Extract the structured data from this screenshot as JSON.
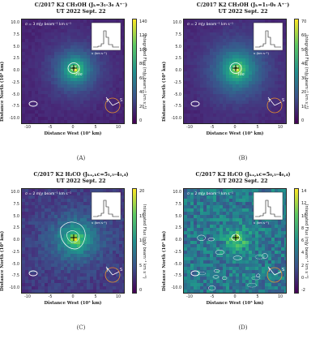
{
  "panels": [
    {
      "title": "C/2017 K2 CH₃OH (Jₖ=3₁-3₀ A⁺⁻)",
      "date": "UT 2022 Sept. 22",
      "note": "σ = 3 mJy beam⁻¹ km s⁻¹",
      "letter": "(A)",
      "cbar_ticks": [
        "140",
        "120",
        "100",
        "80",
        "60",
        "40",
        "20",
        "0"
      ],
      "map_style": "blob",
      "inset_x": "-2.5 0.0 2.5",
      "inset_xlabel": "v (km s⁻¹)",
      "contour_label": "20σ"
    },
    {
      "title": "C/2017 K2 CH₃OH (Jₖ=1₁-0₀ A⁺⁻)",
      "date": "UT 2022 Sept. 22",
      "note": "σ = 2 mJy beam⁻¹ km s⁻¹",
      "letter": "(B)",
      "cbar_ticks": [
        "70",
        "60",
        "50",
        "40",
        "30",
        "20",
        "10",
        "0"
      ],
      "map_style": "blob",
      "inset_x": "-2.5 0.0 2.5",
      "inset_xlabel": "v (km s⁻¹)",
      "contour_label": "10σ"
    },
    {
      "title": "C/2017 K2 H₂CO (Jₖₐ,ₖc=5₁,₅-4₁,₄)",
      "date": "UT 2022 Sept. 22",
      "note": "σ = 2 mJy beam⁻¹ km s⁻¹",
      "letter": "(C)",
      "cbar_ticks": [
        "20",
        "15",
        "10",
        "5",
        "0"
      ],
      "map_style": "patchy",
      "inset_x": "-2.5 0.0 2.5",
      "inset_xlabel": "v (km s⁻¹)",
      "contour_label": ""
    },
    {
      "title": "C/2017 K2 H₂CO (Jₖₐ,ₖc=5₀,₅-4₀,₄)",
      "date": "UT 2022 Sept. 22",
      "note": "σ = 2 mJy beam⁻¹ km s⁻¹",
      "letter": "(D)",
      "cbar_ticks": [
        "14",
        "12",
        "10",
        "8",
        "6",
        "4",
        "2",
        "0",
        "-2"
      ],
      "map_style": "noisy",
      "inset_x": "-2.5 0.0 2.5",
      "inset_xlabel": "v (km s⁻¹)",
      "contour_label": ""
    }
  ],
  "axes": {
    "ylabel": "Distance North (10³ km)",
    "xlabel": "Distance West (10³ km)",
    "cbar_label": "Integrated Flux (mJy beam⁻¹ km s⁻¹)",
    "yticks": [
      "10.0",
      "7.5",
      "5.0",
      "2.5",
      "0.0",
      "-2.5",
      "-5.0",
      "-7.5",
      "-10.0"
    ],
    "xticks": [
      "-10",
      "-5",
      "0",
      "5",
      "10"
    ]
  },
  "compass": {
    "sun_label": "S",
    "velocity_label": "T"
  },
  "colors": {
    "map_dark": "#3b1a5e",
    "map_mid": "#2c6d8e",
    "map_bright": "#f6e321",
    "contour": "#ffffff"
  }
}
